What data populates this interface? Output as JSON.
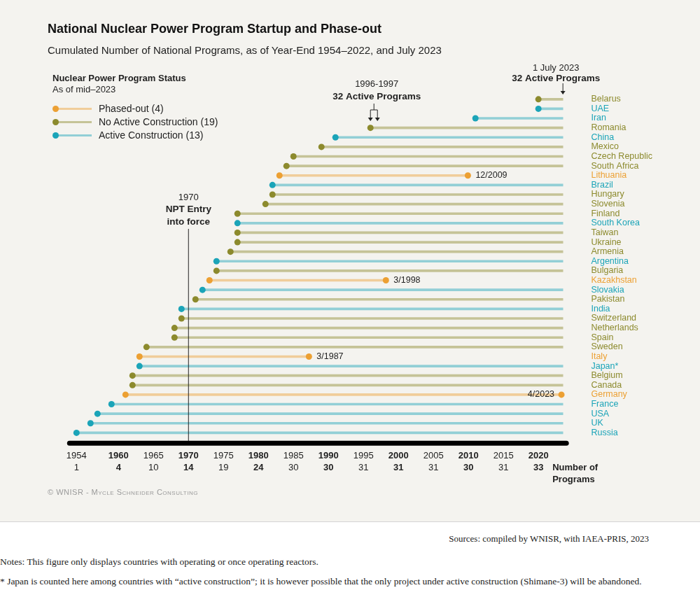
{
  "chart_data": {
    "type": "timeline",
    "title": "National Nuclear Power Program Startup and Phase-out",
    "subtitle": "Cumulated Number of National Programs, as of Year-End 1954–2022, and July 2023",
    "legend_title": [
      "Nuclear Power Program Status",
      "As of mid–2023"
    ],
    "legend": "top-left",
    "grid": false,
    "categories": [
      "Belarus",
      "UAE",
      "Iran",
      "Romania",
      "China",
      "Mexico",
      "Czech Republic",
      "South Africa",
      "Lithuania",
      "Brazil",
      "Hungary",
      "Slovenia",
      "Finland",
      "South Korea",
      "Taiwan",
      "Ukraine",
      "Armenia",
      "Argentina",
      "Bulgaria",
      "Kazakhstan",
      "Slovakia",
      "Pakistan",
      "India",
      "Switzerland",
      "Netherlands",
      "Spain",
      "Sweden",
      "Italy",
      "Japan*",
      "Belgium",
      "Canada",
      "Germany",
      "France",
      "USA",
      "UK",
      "Russia"
    ],
    "series": [
      {
        "name": "Phased-out (4)",
        "color": "#eca033",
        "values": [
          null,
          null,
          null,
          null,
          null,
          null,
          null,
          null,
          [
            1983,
            2009.92
          ],
          null,
          null,
          null,
          null,
          null,
          null,
          null,
          null,
          null,
          null,
          [
            1973,
            1998.21
          ],
          null,
          null,
          null,
          null,
          null,
          null,
          null,
          [
            1963,
            1987.21
          ],
          null,
          null,
          null,
          [
            1961,
            2023.29
          ],
          null,
          null,
          null,
          null
        ],
        "data_labels": true,
        "value_labels": [
          null,
          null,
          null,
          null,
          null,
          null,
          null,
          null,
          "12/2009",
          null,
          null,
          null,
          null,
          null,
          null,
          null,
          null,
          null,
          null,
          "3/1998",
          null,
          null,
          null,
          null,
          null,
          null,
          null,
          "3/1987",
          null,
          null,
          null,
          "4/2023",
          null,
          null,
          null,
          null
        ]
      },
      {
        "name": "No Active Construction (19)",
        "color": "#8c8a2d",
        "values": [
          [
            2020,
            2023.5
          ],
          null,
          null,
          [
            1996,
            2023.5
          ],
          null,
          [
            1989,
            2023.5
          ],
          [
            1985,
            2023.5
          ],
          [
            1984,
            2023.5
          ],
          null,
          null,
          [
            1982,
            2023.5
          ],
          [
            1981,
            2023.5
          ],
          [
            1977,
            2023.5
          ],
          null,
          [
            1977,
            2023.5
          ],
          [
            1977,
            2023.5
          ],
          [
            1976,
            2023.5
          ],
          null,
          [
            1974,
            2023.5
          ],
          null,
          null,
          [
            1971,
            2023.5
          ],
          null,
          [
            1969,
            2023.5
          ],
          [
            1968,
            2023.5
          ],
          [
            1968,
            2023.5
          ],
          [
            1964,
            2023.5
          ],
          null,
          null,
          [
            1962,
            2023.5
          ],
          [
            1962,
            2023.5
          ],
          null,
          null,
          null,
          null,
          null
        ]
      },
      {
        "name": "Active Construction (13)",
        "color": "#1ba4b8",
        "values": [
          null,
          [
            2020,
            2023.5
          ],
          [
            2011,
            2023.5
          ],
          null,
          [
            1991,
            2023.5
          ],
          null,
          null,
          null,
          null,
          [
            1982,
            2023.5
          ],
          null,
          null,
          null,
          [
            1977,
            2023.5
          ],
          null,
          null,
          null,
          [
            1974,
            2023.5
          ],
          null,
          null,
          [
            1972,
            2023.5
          ],
          null,
          [
            1969,
            2023.5
          ],
          null,
          null,
          null,
          null,
          null,
          [
            1963,
            2023.5
          ],
          null,
          null,
          null,
          [
            1959,
            2023.5
          ],
          [
            1957,
            2023.5
          ],
          [
            1956,
            2023.5
          ],
          [
            1954,
            2023.5
          ]
        ]
      }
    ],
    "xlim": [
      1953,
      2024
    ],
    "xticks": [
      1954,
      1960,
      1965,
      1970,
      1975,
      1980,
      1985,
      1990,
      1995,
      2000,
      2005,
      2010,
      2015,
      2020
    ],
    "program_counts": [
      1,
      4,
      10,
      14,
      19,
      24,
      30,
      30,
      31,
      31,
      31,
      30,
      31,
      33
    ],
    "count_axis_label": [
      "Number of",
      "Programs"
    ],
    "annotations": [
      {
        "x": 1970,
        "marker": "line",
        "text": [
          "1970",
          "NPT Entry",
          "into force"
        ]
      },
      {
        "x": [
          1996,
          1997
        ],
        "marker": "bracket",
        "text": [
          "1996-1997",
          "32 Active Programs"
        ]
      },
      {
        "x": 2023.5,
        "marker": "arrow",
        "text": [
          "1 July 2023",
          "32 Active Programs"
        ]
      }
    ],
    "copyright": "© WNISR - Mycle Schneider Consulting"
  },
  "footer": {
    "source": "Sources: compiled by WNISR, with IAEA-PRIS, 2023",
    "note": "Notes: This figure only displays countries with operating or once operating reactors.",
    "footnote": "* Japan is counted here among countries with “active construction”; it is however possible that the only project under active construction (Shimane-3) will be abandoned."
  }
}
